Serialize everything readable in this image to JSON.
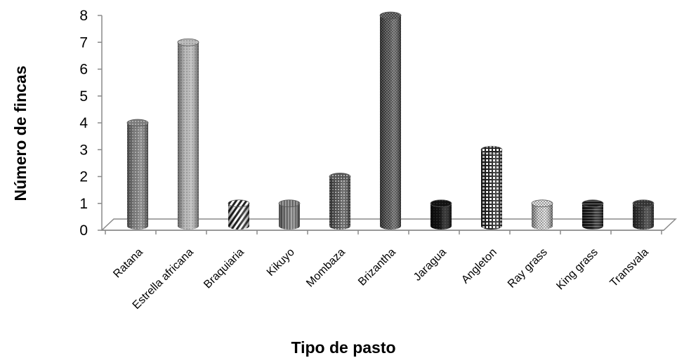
{
  "chart_data": {
    "type": "bar",
    "style": "3d-cylinder",
    "categories": [
      "Ratana",
      "Estrella africana",
      "Braquiaria",
      "Kikuyo",
      "Mombaza",
      "Brizantha",
      "Jaragua",
      "Angleton",
      "Ray grass",
      "King grass",
      "Transvala"
    ],
    "values": [
      4,
      7,
      1,
      1,
      2,
      8,
      1,
      3,
      1,
      1,
      1
    ],
    "xlabel": "Tipo de pasto",
    "ylabel": "Número de fincas",
    "ylim": [
      0,
      8
    ],
    "yticks": [
      "0",
      "1",
      "2",
      "3",
      "4",
      "5",
      "6",
      "7",
      "8"
    ],
    "grid": false,
    "legend": "none"
  }
}
